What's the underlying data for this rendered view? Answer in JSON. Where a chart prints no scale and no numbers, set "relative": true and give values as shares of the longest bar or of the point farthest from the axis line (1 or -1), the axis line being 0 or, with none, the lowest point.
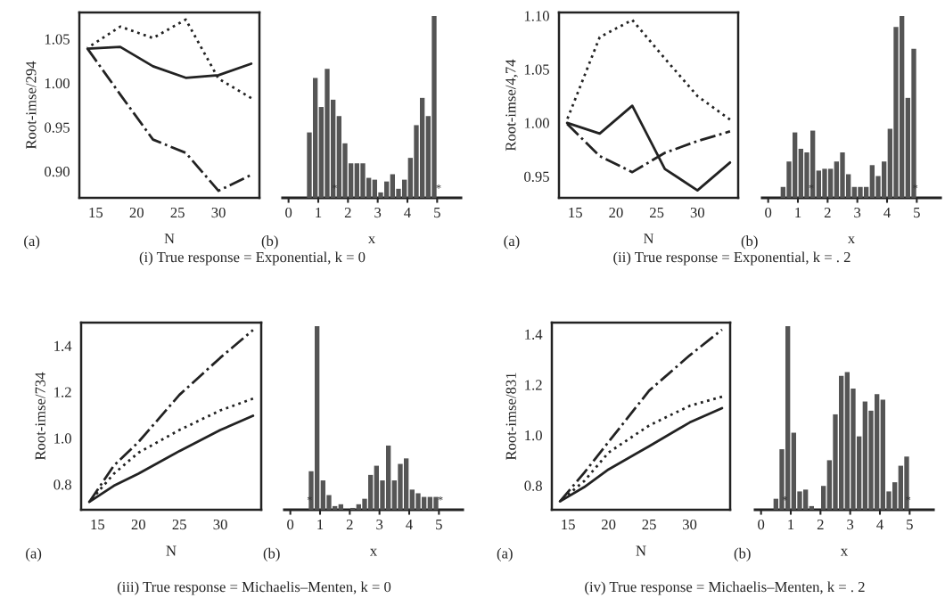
{
  "chart_data": [
    {
      "type": "line",
      "ylabel": "Root-imse/294",
      "xlabel": "N",
      "x": [
        14,
        18,
        22,
        26,
        30,
        34
      ],
      "xlim": [
        13,
        35
      ],
      "xticks": [
        15,
        20,
        25,
        30
      ],
      "ylim": [
        0.87,
        1.08
      ],
      "yticks": [
        {
          "value": 0.9,
          "label": "0.90"
        },
        0.95,
        {
          "value": 1.0,
          "label": "1.00"
        },
        1.05
      ],
      "series": [
        {
          "color": "#222222",
          "line_style": "solid",
          "values": [
            1.039,
            1.041,
            1.019,
            1.006,
            1.009,
            1.022
          ]
        },
        {
          "color": "#222222",
          "line_style": "dotted",
          "values": [
            1.04,
            1.064,
            1.051,
            1.072,
            1.005,
            0.983
          ]
        },
        {
          "color": "#222222",
          "line_style": "dashdot",
          "values": [
            1.039,
            0.987,
            0.936,
            0.921,
            0.878,
            0.896
          ]
        }
      ],
      "annotations": [
        "(a)",
        "(i) True response = Exponential, k = 0"
      ]
    },
    {
      "type": "bar",
      "relative": true,
      "xlabel": "x",
      "color": "#555555",
      "tick_labels": "x",
      "xlim": [
        -0.2,
        5.8
      ],
      "xticks": [
        0,
        1,
        2,
        3,
        4,
        5
      ],
      "x": [
        0.7,
        0.9,
        1.1,
        1.3,
        1.5,
        1.7,
        1.9,
        2.1,
        2.3,
        2.5,
        2.7,
        2.9,
        3.1,
        3.3,
        3.5,
        3.7,
        3.9,
        4.1,
        4.3,
        4.5,
        4.7,
        4.9
      ],
      "values": [
        0.36,
        0.66,
        0.5,
        0.71,
        0.54,
        0.45,
        0.3,
        0.19,
        0.19,
        0.19,
        0.11,
        0.1,
        0.03,
        0.09,
        0.13,
        0.05,
        0.1,
        0.22,
        0.4,
        0.55,
        0.45,
        1
      ],
      "annotations": [
        "(b)",
        {
          "text": "*",
          "x": 1.55,
          "y": 0.02
        },
        {
          "text": "*",
          "x": 5.05,
          "y": 0.02
        }
      ]
    },
    {
      "type": "line",
      "ylabel": "Root-imse/4,74",
      "xlabel": "N",
      "x": [
        14,
        18,
        22,
        26,
        30,
        34
      ],
      "xlim": [
        13,
        35
      ],
      "xticks": [
        15,
        20,
        25,
        30
      ],
      "ylim": [
        0.93,
        1.103
      ],
      "yticks": [
        0.95,
        {
          "value": 1.0,
          "label": "1.00"
        },
        1.05,
        {
          "value": 1.1,
          "label": "1.10"
        }
      ],
      "series": [
        {
          "color": "#222222",
          "line_style": "solid",
          "values": [
            1.0,
            0.99,
            1.016,
            0.957,
            0.937,
            0.963
          ]
        },
        {
          "color": "#222222",
          "line_style": "dotted",
          "values": [
            1.003,
            1.08,
            1.096,
            1.06,
            1.025,
            1.003
          ]
        },
        {
          "color": "#222222",
          "line_style": "dashdot",
          "values": [
            0.999,
            0.969,
            0.954,
            0.972,
            0.983,
            0.992
          ]
        }
      ],
      "annotations": [
        "(a)",
        "(ii) True response = Exponential, k = . 2"
      ]
    },
    {
      "type": "bar",
      "relative": true,
      "xlabel": "x",
      "color": "#555555",
      "tick_labels": "x",
      "xlim": [
        -0.2,
        5.8
      ],
      "xticks": [
        0,
        1,
        2,
        3,
        4,
        5
      ],
      "x": [
        0.5,
        0.7,
        0.9,
        1.1,
        1.3,
        1.5,
        1.7,
        1.9,
        2.1,
        2.3,
        2.5,
        2.7,
        2.9,
        3.1,
        3.3,
        3.5,
        3.7,
        3.9,
        4.1,
        4.3,
        4.5,
        4.7,
        4.9
      ],
      "values": [
        0.06,
        0.2,
        0.36,
        0.27,
        0.25,
        0.37,
        0.15,
        0.16,
        0.16,
        0.2,
        0.25,
        0.13,
        0.06,
        0.06,
        0.06,
        0.18,
        0.12,
        0.2,
        0.38,
        0.94,
        1,
        0.55,
        0.82
      ],
      "annotations": [
        "(b)",
        {
          "text": "*",
          "x": 1.45,
          "y": 0.02
        },
        {
          "text": "*",
          "x": 4.95,
          "y": 0.02
        }
      ]
    },
    {
      "type": "line",
      "ylabel": "Root-imse/734",
      "xlabel": "N",
      "x": [
        14,
        17,
        20,
        25,
        30,
        34
      ],
      "xlim": [
        13,
        35
      ],
      "xticks": [
        15,
        20,
        25,
        30
      ],
      "ylim": [
        0.69,
        1.5
      ],
      "yticks": [
        0.8,
        {
          "value": 1.0,
          "label": "1.0"
        },
        1.2,
        1.4
      ],
      "series": [
        {
          "color": "#222222",
          "line_style": "solid",
          "values": [
            0.724,
            0.794,
            0.846,
            0.944,
            1.035,
            1.097
          ]
        },
        {
          "color": "#222222",
          "line_style": "dotted",
          "values": [
            0.724,
            0.846,
            0.937,
            1.035,
            1.12,
            1.171
          ]
        },
        {
          "color": "#222222",
          "line_style": "dashdot",
          "values": [
            0.724,
            0.881,
            0.983,
            1.187,
            1.348,
            1.468
          ]
        }
      ],
      "annotations": [
        "(a)",
        "(iii) True response = Michaelis–Menten, k = 0"
      ]
    },
    {
      "type": "bar",
      "relative": true,
      "xlabel": "x",
      "color": "#555555",
      "tick_labels": "x",
      "xlim": [
        -0.2,
        5.8
      ],
      "xticks": [
        0,
        1,
        2,
        3,
        4,
        5
      ],
      "x": [
        0.7,
        0.9,
        1.1,
        1.3,
        1.5,
        1.7,
        1.9,
        2.1,
        2.3,
        2.5,
        2.7,
        2.9,
        3.1,
        3.3,
        3.5,
        3.7,
        3.9,
        4.1,
        4.3,
        4.5,
        4.7,
        4.9
      ],
      "values": [
        0.21,
        1,
        0.16,
        0.08,
        0.02,
        0.03,
        0,
        0.01,
        0.03,
        0.06,
        0.19,
        0.24,
        0.16,
        0.35,
        0.16,
        0.25,
        0.28,
        0.11,
        0.09,
        0.07,
        0.07,
        0.07
      ],
      "annotations": [
        "(b)",
        {
          "text": "*",
          "x": 0.65,
          "y": 0.02
        },
        {
          "text": "*",
          "x": 5.05,
          "y": 0.02
        }
      ]
    },
    {
      "type": "line",
      "ylabel": "Root-imse/831",
      "xlabel": "N",
      "x": [
        14,
        17,
        20,
        25,
        30,
        34
      ],
      "xlim": [
        13,
        35
      ],
      "xticks": [
        15,
        20,
        25,
        30
      ],
      "ylim": [
        0.704,
        1.446
      ],
      "yticks": [
        0.8,
        {
          "value": 1.0,
          "label": "1.0"
        },
        1.2,
        1.4
      ],
      "series": [
        {
          "color": "#222222",
          "line_style": "solid",
          "values": [
            0.737,
            0.794,
            0.864,
            0.956,
            1.05,
            1.107
          ]
        },
        {
          "color": "#222222",
          "line_style": "dotted",
          "values": [
            0.737,
            0.818,
            0.931,
            1.038,
            1.116,
            1.152
          ]
        },
        {
          "color": "#222222",
          "line_style": "dashdot",
          "values": [
            0.737,
            0.851,
            0.973,
            1.176,
            1.316,
            1.418
          ]
        }
      ],
      "annotations": [
        "(a)",
        "(iv) True response = Michaelis–Menten, k = . 2"
      ]
    },
    {
      "type": "bar",
      "relative": true,
      "xlabel": "x",
      "color": "#555555",
      "tick_labels": "x",
      "xlim": [
        -0.2,
        5.8
      ],
      "xticks": [
        0,
        1,
        2,
        3,
        4,
        5
      ],
      "x": [
        0.5,
        0.7,
        0.9,
        1.1,
        1.3,
        1.5,
        1.7,
        1.9,
        2.1,
        2.3,
        2.5,
        2.7,
        2.9,
        3.1,
        3.3,
        3.5,
        3.7,
        3.9,
        4.1,
        4.3,
        4.5,
        4.7,
        4.9
      ],
      "values": [
        0.06,
        0.33,
        1,
        0.42,
        0.1,
        0.11,
        0.02,
        0,
        0.13,
        0.27,
        0.52,
        0.73,
        0.75,
        0.66,
        0.4,
        0.59,
        0.54,
        0.63,
        0.6,
        0.1,
        0.15,
        0.24,
        0.29
      ],
      "annotations": [
        "(b)",
        {
          "text": "*",
          "x": 0.8,
          "y": 0.02
        },
        {
          "text": "*",
          "x": 4.95,
          "y": 0.02
        }
      ]
    }
  ]
}
